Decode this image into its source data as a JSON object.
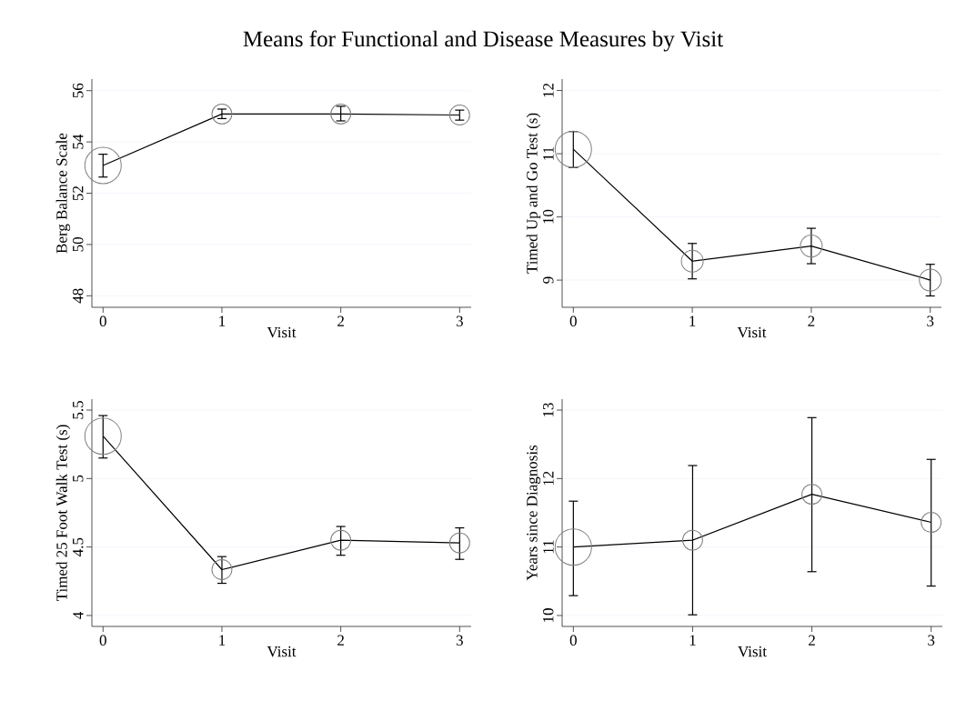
{
  "chart_data": [
    {
      "type": "line",
      "title": "Means for Functional and Disease Measures by Visit",
      "xlabel": "Visit",
      "ylabel": "Berg Balance Scale",
      "x": [
        0,
        1,
        2,
        3
      ],
      "grid": "y",
      "xlim": [
        -0.094,
        3.097
      ],
      "ylim": [
        47.55,
        56.45
      ],
      "xticks": [
        0,
        1,
        2,
        3
      ],
      "yticks": [
        48,
        50,
        52,
        54,
        56
      ],
      "series": [
        {
          "color": "#000000",
          "values": [
            53.08,
            55.09,
            55.09,
            55.05
          ],
          "errors": [
            [
              52.63,
              53.52
            ],
            [
              54.91,
              55.28
            ],
            [
              54.82,
              55.39
            ],
            [
              54.85,
              55.24
            ]
          ]
        },
        {
          "type": "bubble",
          "color": "#808080",
          "values": [
            53.08,
            55.09,
            55.09,
            55.05
          ],
          "sizes": [
            1,
            0.3,
            0.3,
            0.3
          ]
        }
      ]
    },
    {
      "type": "line",
      "xlabel": "Visit",
      "ylabel": "Timed Up and Go Test (s)",
      "x": [
        0,
        1,
        2,
        3
      ],
      "grid": "y",
      "xlim": [
        -0.094,
        3.094
      ],
      "ylim": [
        8.57,
        12.18
      ],
      "xticks": [
        0,
        1,
        2,
        3
      ],
      "yticks": [
        9,
        10,
        11,
        12
      ],
      "series": [
        {
          "color": "#000000",
          "values": [
            11.07,
            9.3,
            9.54,
            9.0
          ],
          "errors": [
            [
              10.78,
              11.35
            ],
            [
              9.02,
              9.58
            ],
            [
              9.26,
              9.82
            ],
            [
              8.75,
              9.25
            ]
          ]
        },
        {
          "type": "bubble",
          "color": "#808080",
          "values": [
            11.07,
            9.3,
            9.54,
            9.0
          ],
          "sizes": [
            1,
            0.36,
            0.36,
            0.36
          ]
        }
      ]
    },
    {
      "type": "line",
      "xlabel": "Visit",
      "ylabel": "Timed 25 Foot Walk Test (s)",
      "x": [
        0,
        1,
        2,
        3
      ],
      "grid": "y",
      "xlim": [
        -0.094,
        3.097
      ],
      "ylim": [
        3.92,
        5.58
      ],
      "xticks": [
        0,
        1,
        2,
        3
      ],
      "yticks": [
        4,
        4.5,
        5,
        5.5
      ],
      "series": [
        {
          "color": "#000000",
          "values": [
            5.31,
            4.335,
            4.55,
            4.53
          ],
          "errors": [
            [
              5.15,
              5.46
            ],
            [
              4.235,
              4.43
            ],
            [
              4.44,
              4.65
            ],
            [
              4.41,
              4.64
            ]
          ]
        },
        {
          "type": "bubble",
          "color": "#808080",
          "values": [
            5.31,
            4.335,
            4.55,
            4.53
          ],
          "sizes": [
            1,
            0.3,
            0.3,
            0.3
          ]
        }
      ]
    },
    {
      "type": "line",
      "xlabel": "Visit",
      "ylabel": "Years since Diagnosis",
      "x": [
        0,
        1,
        2,
        3
      ],
      "grid": "y",
      "xlim": [
        -0.094,
        3.094
      ],
      "ylim": [
        9.84,
        13.16
      ],
      "xticks": [
        0,
        1,
        2,
        3
      ],
      "yticks": [
        10,
        11,
        12,
        13
      ],
      "series": [
        {
          "color": "#000000",
          "values": [
            11.0,
            11.1,
            11.77,
            11.36
          ],
          "errors": [
            [
              10.29,
              11.67
            ],
            [
              10.01,
              12.19
            ],
            [
              10.64,
              12.89
            ],
            [
              10.43,
              12.28
            ]
          ]
        },
        {
          "type": "bubble",
          "color": "#808080",
          "values": [
            11.0,
            11.1,
            11.77,
            11.36
          ],
          "sizes": [
            1,
            0.3,
            0.3,
            0.3
          ]
        }
      ]
    }
  ]
}
